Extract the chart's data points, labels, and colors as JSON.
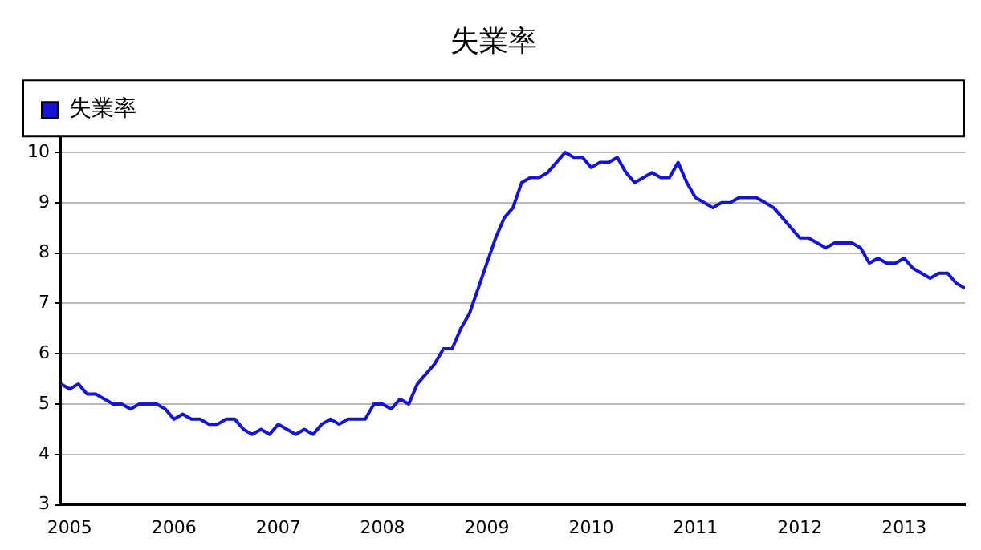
{
  "chart_data": {
    "type": "line",
    "title": "失業率",
    "x": [
      "2004-12",
      "2005-01",
      "2005-02",
      "2005-03",
      "2005-04",
      "2005-05",
      "2005-06",
      "2005-07",
      "2005-08",
      "2005-09",
      "2005-10",
      "2005-11",
      "2005-12",
      "2006-01",
      "2006-02",
      "2006-03",
      "2006-04",
      "2006-05",
      "2006-06",
      "2006-07",
      "2006-08",
      "2006-09",
      "2006-10",
      "2006-11",
      "2006-12",
      "2007-01",
      "2007-02",
      "2007-03",
      "2007-04",
      "2007-05",
      "2007-06",
      "2007-07",
      "2007-08",
      "2007-09",
      "2007-10",
      "2007-11",
      "2007-12",
      "2008-01",
      "2008-02",
      "2008-03",
      "2008-04",
      "2008-05",
      "2008-06",
      "2008-07",
      "2008-08",
      "2008-09",
      "2008-10",
      "2008-11",
      "2008-12",
      "2009-01",
      "2009-02",
      "2009-03",
      "2009-04",
      "2009-05",
      "2009-06",
      "2009-07",
      "2009-08",
      "2009-09",
      "2009-10",
      "2009-11",
      "2009-12",
      "2010-01",
      "2010-02",
      "2010-03",
      "2010-04",
      "2010-05",
      "2010-06",
      "2010-07",
      "2010-08",
      "2010-09",
      "2010-10",
      "2010-11",
      "2010-12",
      "2011-01",
      "2011-02",
      "2011-03",
      "2011-04",
      "2011-05",
      "2011-06",
      "2011-07",
      "2011-08",
      "2011-09",
      "2011-10",
      "2011-11",
      "2011-12",
      "2012-01",
      "2012-02",
      "2012-03",
      "2012-04",
      "2012-05",
      "2012-06",
      "2012-07",
      "2012-08",
      "2012-09",
      "2012-10",
      "2012-11",
      "2012-12",
      "2013-01",
      "2013-02",
      "2013-03",
      "2013-04",
      "2013-05",
      "2013-06",
      "2013-07",
      "2013-08"
    ],
    "series": [
      {
        "name": "失業率",
        "color": "#1414d8",
        "values": [
          5.4,
          5.3,
          5.4,
          5.2,
          5.2,
          5.1,
          5.0,
          5.0,
          4.9,
          5.0,
          5.0,
          5.0,
          4.9,
          4.7,
          4.8,
          4.7,
          4.7,
          4.6,
          4.6,
          4.7,
          4.7,
          4.5,
          4.4,
          4.5,
          4.4,
          4.6,
          4.5,
          4.4,
          4.5,
          4.4,
          4.6,
          4.7,
          4.6,
          4.7,
          4.7,
          4.7,
          5.0,
          5.0,
          4.9,
          5.1,
          5.0,
          5.4,
          5.6,
          5.8,
          6.1,
          6.1,
          6.5,
          6.8,
          7.3,
          7.8,
          8.3,
          8.7,
          8.9,
          9.4,
          9.5,
          9.5,
          9.6,
          9.8,
          10.0,
          9.9,
          9.9,
          9.7,
          9.8,
          9.8,
          9.9,
          9.6,
          9.4,
          9.5,
          9.6,
          9.5,
          9.5,
          9.8,
          9.4,
          9.1,
          9.0,
          8.9,
          9.0,
          9.0,
          9.1,
          9.1,
          9.1,
          9.0,
          8.9,
          8.7,
          8.5,
          8.3,
          8.3,
          8.2,
          8.1,
          8.2,
          8.2,
          8.2,
          8.1,
          7.8,
          7.9,
          7.8,
          7.8,
          7.9,
          7.7,
          7.6,
          7.5,
          7.6,
          7.6,
          7.4,
          7.3
        ]
      }
    ],
    "xlim": [
      "2004-12",
      "2013-08"
    ],
    "xticks": [
      "2005",
      "2006",
      "2007",
      "2008",
      "2009",
      "2010",
      "2011",
      "2012",
      "2013"
    ],
    "ylim": [
      3,
      10.3
    ],
    "yticks": [
      3,
      4,
      5,
      6,
      7,
      8,
      9,
      10
    ],
    "grid": "y",
    "legend": "top left",
    "marker": "none",
    "line_style": "solid"
  }
}
